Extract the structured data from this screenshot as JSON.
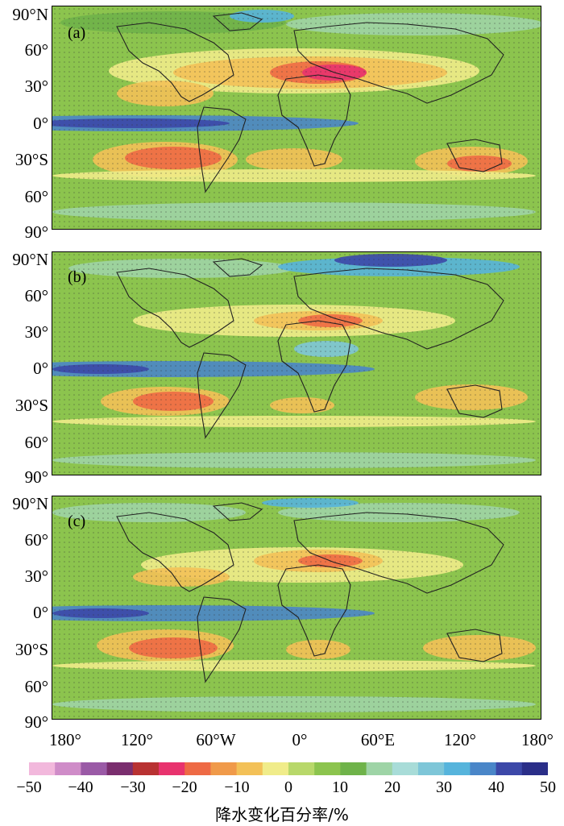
{
  "panels": [
    {
      "label": "(a)"
    },
    {
      "label": "(b)"
    },
    {
      "label": "(c)"
    }
  ],
  "lat_labels": [
    "90°N",
    "60°",
    "30°",
    "0°",
    "30°S",
    "60°",
    "90°"
  ],
  "lon_labels": [
    "180°",
    "120°",
    "60°W",
    "0°",
    "60°E",
    "120°",
    "180°"
  ],
  "colorbar": {
    "title": "降水变化百分率/%",
    "tick_labels": [
      "−50",
      "−40",
      "−30",
      "−20",
      "−10",
      "0",
      "10",
      "20",
      "30",
      "40",
      "50"
    ],
    "colors": [
      "#f2b8dc",
      "#cf8cc8",
      "#9a5aa6",
      "#7a2e6e",
      "#b83232",
      "#e8336e",
      "#ee6a45",
      "#f09a4a",
      "#f3c158",
      "#f0ec8a",
      "#b8d86a",
      "#8cc44e",
      "#6fb34a",
      "#9ed4a6",
      "#a8dcd8",
      "#7ec6d8",
      "#56b4dc",
      "#4a86c8",
      "#3c48a8",
      "#2a2e88"
    ]
  }
}
